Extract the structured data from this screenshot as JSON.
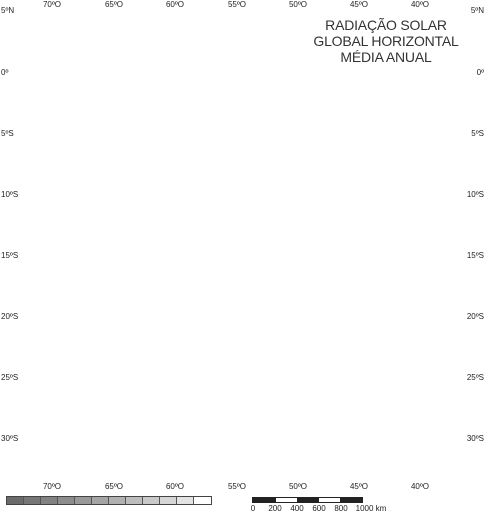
{
  "map": {
    "title_lines": [
      "RADIAÇÃO SOLAR",
      "GLOBAL HORIZONTAL",
      "MÉDIA ANUAL"
    ],
    "lon_labels_top": [
      "70ºO",
      "65ºO",
      "60ºO",
      "55ºO",
      "50ºO",
      "45ºO",
      "40ºO"
    ],
    "lon_labels_bottom": [
      "70ºO",
      "65ºO",
      "60ºO",
      "55ºO",
      "50ºO",
      "45ºO",
      "40ºO"
    ],
    "lat_labels_left": [
      "5ºN",
      "0º",
      "5ºS",
      "10ºS",
      "15ºS",
      "20ºS",
      "25ºS",
      "30ºS"
    ],
    "lat_labels_right": [
      "5ºN",
      "0º",
      "5ºS",
      "10ºS",
      "15ºS",
      "20ºS",
      "25ºS",
      "30ºS"
    ]
  },
  "legend": {
    "colors": [
      "#6b6b6b",
      "#777777",
      "#828282",
      "#8d8d8d",
      "#999999",
      "#a5a5a5",
      "#b1b1b1",
      "#bdbdbd",
      "#c9c9c9",
      "#d6d6d6",
      "#e3e3e3",
      "#ffffff"
    ]
  },
  "scalebar": {
    "ticks": [
      "0",
      "200",
      "400",
      "600",
      "800",
      "1000 km"
    ]
  }
}
